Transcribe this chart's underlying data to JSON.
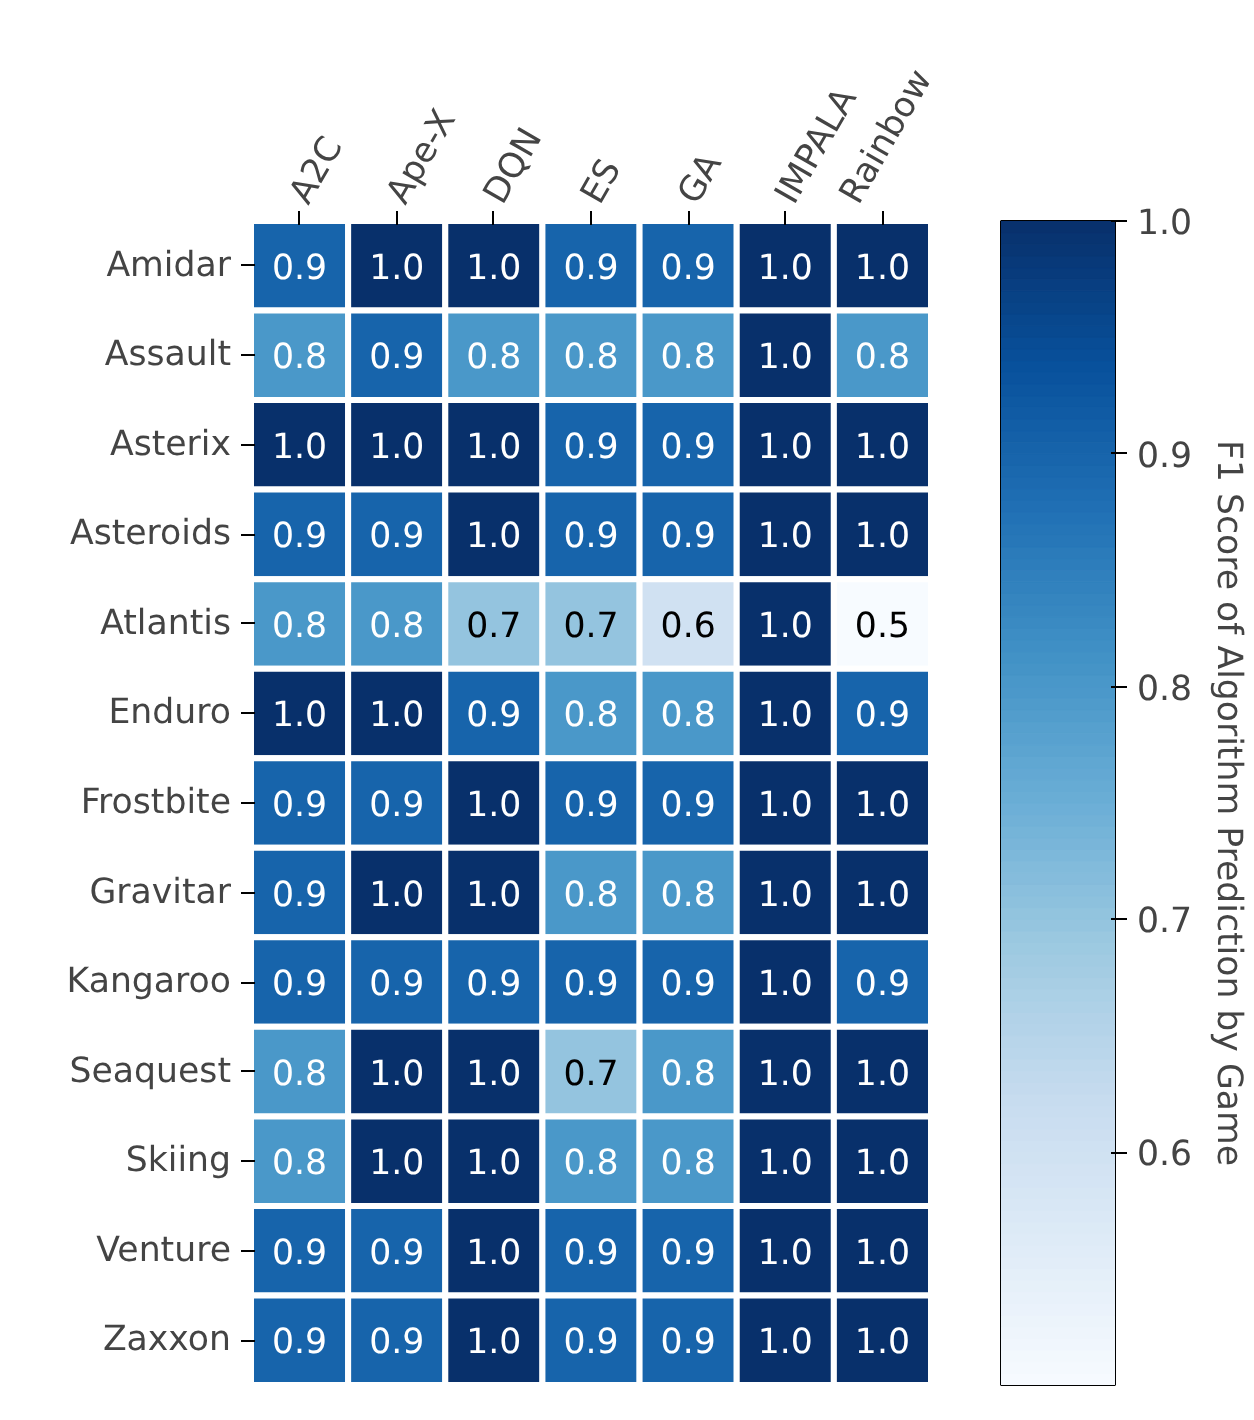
{
  "chart_data": {
    "type": "heatmap",
    "categories": [
      "A2C",
      "Ape-X",
      "DQN",
      "ES",
      "GA",
      "IMPALA",
      "Rainbow"
    ],
    "y_categories": [
      "Amidar",
      "Assault",
      "Asterix",
      "Asteroids",
      "Atlantis",
      "Enduro",
      "Frostbite",
      "Gravitar",
      "Kangaroo",
      "Seaquest",
      "Skiing",
      "Venture",
      "Zaxxon"
    ],
    "cells": [
      [
        0.9,
        1.0,
        1.0,
        0.9,
        0.9,
        1.0,
        1.0
      ],
      [
        0.8,
        0.9,
        0.8,
        0.8,
        0.8,
        1.0,
        0.8
      ],
      [
        1.0,
        1.0,
        1.0,
        0.9,
        0.9,
        1.0,
        1.0
      ],
      [
        0.9,
        0.9,
        1.0,
        0.9,
        0.9,
        1.0,
        1.0
      ],
      [
        0.8,
        0.8,
        0.7,
        0.7,
        0.6,
        1.0,
        0.5
      ],
      [
        1.0,
        1.0,
        0.9,
        0.8,
        0.8,
        1.0,
        0.9
      ],
      [
        0.9,
        0.9,
        1.0,
        0.9,
        0.9,
        1.0,
        1.0
      ],
      [
        0.9,
        1.0,
        1.0,
        0.8,
        0.8,
        1.0,
        1.0
      ],
      [
        0.9,
        0.9,
        0.9,
        0.9,
        0.9,
        1.0,
        0.9
      ],
      [
        0.8,
        1.0,
        1.0,
        0.7,
        0.8,
        1.0,
        1.0
      ],
      [
        0.8,
        1.0,
        1.0,
        0.8,
        0.8,
        1.0,
        1.0
      ],
      [
        0.9,
        0.9,
        1.0,
        0.9,
        0.9,
        1.0,
        1.0
      ],
      [
        0.9,
        0.9,
        1.0,
        0.9,
        0.9,
        1.0,
        1.0
      ]
    ],
    "cell_labels": [
      [
        "0.9",
        "1.0",
        "1.0",
        "0.9",
        "0.9",
        "1.0",
        "1.0"
      ],
      [
        "0.8",
        "0.9",
        "0.8",
        "0.8",
        "0.8",
        "1.0",
        "0.8"
      ],
      [
        "1.0",
        "1.0",
        "1.0",
        "0.9",
        "0.9",
        "1.0",
        "1.0"
      ],
      [
        "0.9",
        "0.9",
        "1.0",
        "0.9",
        "0.9",
        "1.0",
        "1.0"
      ],
      [
        "0.8",
        "0.8",
        "0.7",
        "0.7",
        "0.6",
        "1.0",
        "0.5"
      ],
      [
        "1.0",
        "1.0",
        "0.9",
        "0.8",
        "0.8",
        "1.0",
        "0.9"
      ],
      [
        "0.9",
        "0.9",
        "1.0",
        "0.9",
        "0.9",
        "1.0",
        "1.0"
      ],
      [
        "0.9",
        "1.0",
        "1.0",
        "0.8",
        "0.8",
        "1.0",
        "1.0"
      ],
      [
        "0.9",
        "0.9",
        "0.9",
        "0.9",
        "0.9",
        "1.0",
        "0.9"
      ],
      [
        "0.8",
        "1.0",
        "1.0",
        "0.7",
        "0.8",
        "1.0",
        "1.0"
      ],
      [
        "0.8",
        "1.0",
        "1.0",
        "0.8",
        "0.8",
        "1.0",
        "1.0"
      ],
      [
        "0.9",
        "0.9",
        "1.0",
        "0.9",
        "0.9",
        "1.0",
        "1.0"
      ],
      [
        "0.9",
        "0.9",
        "1.0",
        "0.9",
        "0.9",
        "1.0",
        "1.0"
      ]
    ],
    "clabel": "F1 Score of Algorithm Prediction by Game",
    "clim": [
      0.5,
      1.0
    ],
    "cticks": [
      0.6,
      0.7,
      0.8,
      0.9,
      {
        "value": 1,
        "label": "1.0"
      }
    ]
  }
}
